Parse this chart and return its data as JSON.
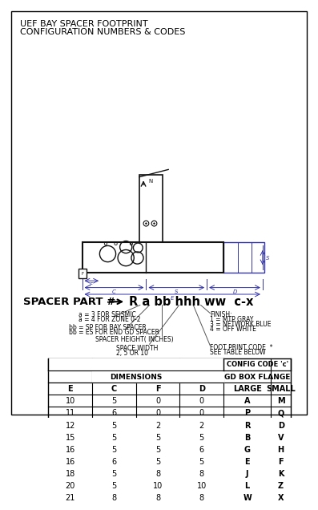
{
  "title_line1": "UEF BAY SPACER FOOTPRINT",
  "title_line2": "CONFIGURATION NUMBERS & CODES",
  "part_label": "SPACER PART #",
  "part_format": "R a bb hhh ww  c-x",
  "table_col_headers": [
    "E",
    "C",
    "F",
    "D",
    "LARGE",
    "SMALL"
  ],
  "table_data": [
    [
      10,
      5,
      0,
      0,
      "A",
      "M"
    ],
    [
      11,
      6,
      0,
      0,
      "P",
      "Q"
    ],
    [
      12,
      5,
      2,
      2,
      "R",
      "D"
    ],
    [
      15,
      5,
      5,
      5,
      "B",
      "V"
    ],
    [
      16,
      5,
      5,
      6,
      "G",
      "H"
    ],
    [
      16,
      6,
      5,
      5,
      "E",
      "F"
    ],
    [
      18,
      5,
      8,
      8,
      "J",
      "K"
    ],
    [
      20,
      5,
      10,
      10,
      "L",
      "Z"
    ],
    [
      21,
      8,
      8,
      8,
      "W",
      "X"
    ]
  ],
  "bg_color": "#ffffff",
  "border_color": "#000000",
  "text_color": "#000000",
  "diagram_color": "#3333aa",
  "draw_black": "#111111"
}
